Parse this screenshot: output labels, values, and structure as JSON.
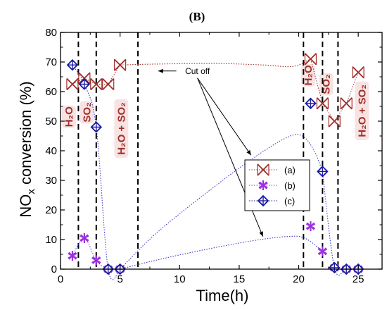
{
  "chart_data": {
    "type": "scatter",
    "panel_label": "(B)",
    "xlabel": "Time(h)",
    "ylabel_main": "NO",
    "ylabel_sub": "x",
    "ylabel_rest": " conversion (%)",
    "xlim": [
      0,
      27
    ],
    "ylim": [
      0,
      80
    ],
    "xticks": [
      0,
      5,
      10,
      15,
      20,
      25
    ],
    "yticks": [
      0,
      10,
      20,
      30,
      40,
      50,
      60,
      70,
      80
    ],
    "vlines": [
      1.5,
      3.0,
      6.5,
      20.4,
      22.0,
      23.3
    ],
    "series": [
      {
        "name": "(a)",
        "color": "#a0302c",
        "marker": "x-square",
        "x": [
          1,
          2,
          3,
          4,
          5,
          21,
          22,
          23,
          24,
          25
        ],
        "y": [
          62.5,
          64.5,
          62.5,
          62.5,
          69,
          71,
          56,
          50,
          56,
          66.5
        ]
      },
      {
        "name": "(b)",
        "color": "#9b30e0",
        "marker": "asterisk",
        "x": [
          1,
          2,
          3,
          4,
          5,
          21,
          22,
          23,
          24,
          25
        ],
        "y": [
          4.5,
          10.5,
          3,
          0,
          0,
          14.5,
          6,
          0.5,
          0,
          0
        ]
      },
      {
        "name": "(c)",
        "color": "#1a1aa0",
        "marker": "diamond-plus",
        "x": [
          1,
          2,
          3,
          4,
          5,
          21,
          22,
          23,
          24,
          25
        ],
        "y": [
          69,
          62.5,
          48,
          0,
          0,
          56,
          33,
          0.5,
          0,
          0
        ]
      }
    ],
    "curves": [
      {
        "series": "(a)",
        "color": "#a0302c",
        "x": [
          5,
          8,
          13,
          17,
          19.5,
          21
        ],
        "y": [
          69,
          69.3,
          69.5,
          69,
          68.5,
          71
        ]
      },
      {
        "series": "(c)",
        "color": "#3a3ad0",
        "x": [
          5,
          8,
          12,
          16,
          19,
          20.3,
          21.3,
          22
        ],
        "y": [
          0,
          12,
          25,
          37,
          44.5,
          45,
          40,
          33
        ]
      },
      {
        "series": "(b)",
        "color": "#3a3ad0",
        "x": [
          5,
          8,
          12,
          16,
          19,
          20.5,
          22
        ],
        "y": [
          0,
          3,
          6.5,
          9.5,
          11,
          10.5,
          6
        ]
      }
    ],
    "region_labels": [
      {
        "text": "H₂O",
        "x": 1.0,
        "y": 51.5
      },
      {
        "text": "SO₂",
        "x": 2.5,
        "y": 53
      },
      {
        "text": "H₂O + SO₂",
        "x": 5.4,
        "y": 47.5
      },
      {
        "text": "H₂O",
        "x": 21.1,
        "y": 65.5
      },
      {
        "text": "SO₂",
        "x": 22.6,
        "y": 62.5
      },
      {
        "text": "H₂O + SO₂",
        "x": 25.6,
        "y": 53.5
      }
    ],
    "annotation": {
      "text": "Cut off",
      "x": 11.5,
      "y": 66
    },
    "legend": {
      "position": "center-right",
      "entries": [
        "(a)",
        "(b)",
        "(c)"
      ]
    }
  }
}
